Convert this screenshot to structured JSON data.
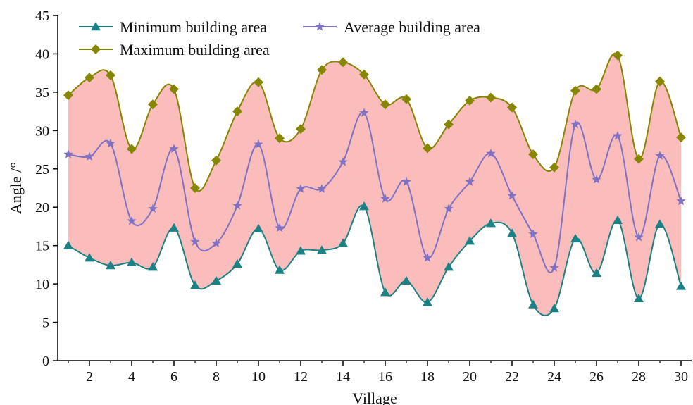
{
  "chart_data": {
    "type": "line",
    "xlabel": "Village",
    "ylabel": "Angle /°",
    "xlim": [
      0.5,
      30.5
    ],
    "ylim": [
      0,
      45
    ],
    "x_ticks": [
      2,
      4,
      6,
      8,
      10,
      12,
      14,
      16,
      18,
      20,
      22,
      24,
      26,
      28,
      30
    ],
    "y_ticks": [
      0,
      5,
      10,
      15,
      20,
      25,
      30,
      35,
      40,
      45
    ],
    "grid": false,
    "legend_position": "top-left",
    "fill_between": {
      "from_series": "Minimum building area",
      "to_series": "Maximum building area",
      "color": "#fbbcbc"
    },
    "x": [
      1,
      2,
      3,
      4,
      5,
      6,
      7,
      8,
      9,
      10,
      11,
      12,
      13,
      14,
      15,
      16,
      17,
      18,
      19,
      20,
      21,
      22,
      23,
      24,
      25,
      26,
      27,
      28,
      29,
      30
    ],
    "series": [
      {
        "name": "Minimum building area",
        "marker": "triangle",
        "color": "#1c8184",
        "values": [
          15.0,
          13.4,
          12.4,
          12.8,
          12.2,
          17.3,
          9.8,
          10.4,
          12.6,
          17.2,
          11.8,
          14.3,
          14.4,
          15.3,
          20.1,
          8.9,
          10.4,
          7.6,
          12.2,
          15.6,
          17.9,
          16.6,
          7.3,
          6.8,
          15.9,
          11.4,
          18.3,
          8.1,
          17.8,
          9.7
        ]
      },
      {
        "name": "Average building area",
        "marker": "star",
        "color": "#7f72c4",
        "values": [
          26.9,
          26.6,
          28.3,
          18.2,
          19.8,
          27.6,
          15.5,
          15.3,
          20.2,
          28.2,
          17.3,
          22.4,
          22.4,
          25.9,
          32.3,
          21.1,
          23.3,
          13.4,
          19.8,
          23.3,
          27.0,
          21.5,
          16.5,
          12.1,
          30.8,
          23.6,
          29.3,
          16.1,
          26.7,
          20.8
        ]
      },
      {
        "name": "Maximum building area",
        "marker": "diamond",
        "color": "#868600",
        "values": [
          34.6,
          36.9,
          37.2,
          27.6,
          33.4,
          35.4,
          22.5,
          26.1,
          32.5,
          36.3,
          29.0,
          30.2,
          37.9,
          38.9,
          37.3,
          33.4,
          34.1,
          27.7,
          30.8,
          33.9,
          34.3,
          33.0,
          26.9,
          25.2,
          35.2,
          35.4,
          39.8,
          26.3,
          36.4,
          29.1
        ]
      }
    ]
  }
}
